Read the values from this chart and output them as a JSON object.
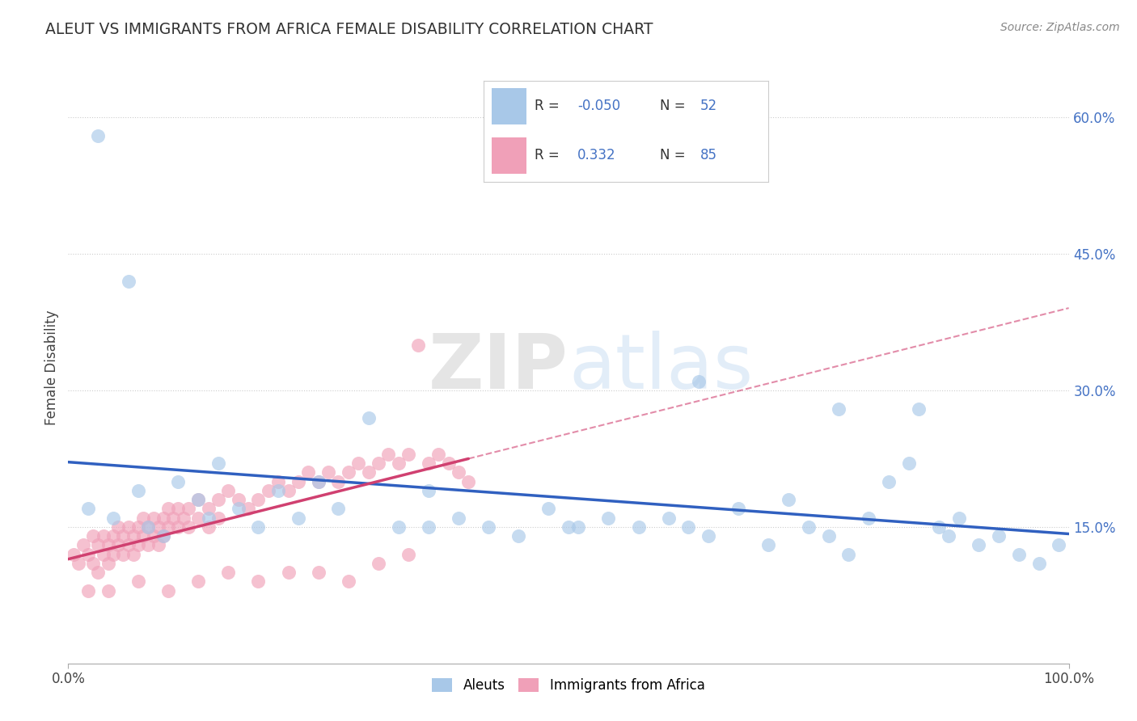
{
  "title": "ALEUT VS IMMIGRANTS FROM AFRICA FEMALE DISABILITY CORRELATION CHART",
  "source": "Source: ZipAtlas.com",
  "ylabel": "Female Disability",
  "xlim": [
    0,
    100
  ],
  "ylim": [
    0,
    65
  ],
  "legend_R1": "-0.050",
  "legend_N1": "52",
  "legend_R2": "0.332",
  "legend_N2": "85",
  "color_aleut": "#a8c8e8",
  "color_immigrant": "#f0a0b8",
  "color_aleut_line": "#3060c0",
  "color_immigrant_line": "#d04070",
  "color_text_blue": "#4472c4",
  "background_color": "#ffffff",
  "grid_color": "#cccccc",
  "watermark_zip": "ZIP",
  "watermark_atlas": "atlas",
  "aleut_x": [
    2.0,
    4.5,
    7.0,
    8.0,
    9.5,
    11.0,
    13.0,
    14.0,
    15.0,
    17.0,
    19.0,
    21.0,
    23.0,
    25.0,
    27.0,
    30.0,
    33.0,
    36.0,
    39.0,
    42.0,
    45.0,
    48.0,
    51.0,
    54.0,
    57.0,
    60.0,
    62.0,
    64.0,
    67.0,
    70.0,
    72.0,
    74.0,
    76.0,
    78.0,
    80.0,
    82.0,
    84.0,
    85.0,
    87.0,
    89.0,
    91.0,
    93.0,
    95.0,
    97.0,
    99.0,
    36.0,
    50.0,
    63.0,
    77.0,
    88.0,
    3.0,
    6.0
  ],
  "aleut_y": [
    17.0,
    16.0,
    19.0,
    15.0,
    14.0,
    20.0,
    18.0,
    16.0,
    22.0,
    17.0,
    15.0,
    19.0,
    16.0,
    20.0,
    17.0,
    27.0,
    15.0,
    19.0,
    16.0,
    15.0,
    14.0,
    17.0,
    15.0,
    16.0,
    15.0,
    16.0,
    15.0,
    14.0,
    17.0,
    13.0,
    18.0,
    15.0,
    14.0,
    12.0,
    16.0,
    20.0,
    22.0,
    28.0,
    15.0,
    16.0,
    13.0,
    14.0,
    12.0,
    11.0,
    13.0,
    15.0,
    15.0,
    31.0,
    28.0,
    14.0,
    58.0,
    42.0
  ],
  "immigrant_x": [
    0.5,
    1.0,
    1.5,
    2.0,
    2.5,
    2.5,
    3.0,
    3.0,
    3.5,
    3.5,
    4.0,
    4.0,
    4.5,
    4.5,
    5.0,
    5.0,
    5.5,
    5.5,
    6.0,
    6.0,
    6.5,
    6.5,
    7.0,
    7.0,
    7.5,
    7.5,
    8.0,
    8.0,
    8.5,
    8.5,
    9.0,
    9.0,
    9.5,
    9.5,
    10.0,
    10.0,
    10.5,
    11.0,
    11.0,
    11.5,
    12.0,
    12.0,
    13.0,
    13.0,
    14.0,
    14.0,
    15.0,
    15.0,
    16.0,
    17.0,
    18.0,
    19.0,
    20.0,
    21.0,
    22.0,
    23.0,
    24.0,
    25.0,
    26.0,
    27.0,
    28.0,
    29.0,
    30.0,
    31.0,
    32.0,
    33.0,
    34.0,
    35.0,
    36.0,
    37.0,
    38.0,
    39.0,
    40.0,
    25.0,
    28.0,
    31.0,
    34.0,
    22.0,
    19.0,
    16.0,
    13.0,
    10.0,
    7.0,
    4.0,
    2.0
  ],
  "immigrant_y": [
    12.0,
    11.0,
    13.0,
    12.0,
    14.0,
    11.0,
    13.0,
    10.0,
    14.0,
    12.0,
    13.0,
    11.0,
    14.0,
    12.0,
    15.0,
    13.0,
    14.0,
    12.0,
    15.0,
    13.0,
    14.0,
    12.0,
    15.0,
    13.0,
    16.0,
    14.0,
    15.0,
    13.0,
    16.0,
    14.0,
    15.0,
    13.0,
    16.0,
    14.0,
    17.0,
    15.0,
    16.0,
    17.0,
    15.0,
    16.0,
    17.0,
    15.0,
    18.0,
    16.0,
    17.0,
    15.0,
    18.0,
    16.0,
    19.0,
    18.0,
    17.0,
    18.0,
    19.0,
    20.0,
    19.0,
    20.0,
    21.0,
    20.0,
    21.0,
    20.0,
    21.0,
    22.0,
    21.0,
    22.0,
    23.0,
    22.0,
    23.0,
    35.0,
    22.0,
    23.0,
    22.0,
    21.0,
    20.0,
    10.0,
    9.0,
    11.0,
    12.0,
    10.0,
    9.0,
    10.0,
    9.0,
    8.0,
    9.0,
    8.0,
    8.0
  ]
}
